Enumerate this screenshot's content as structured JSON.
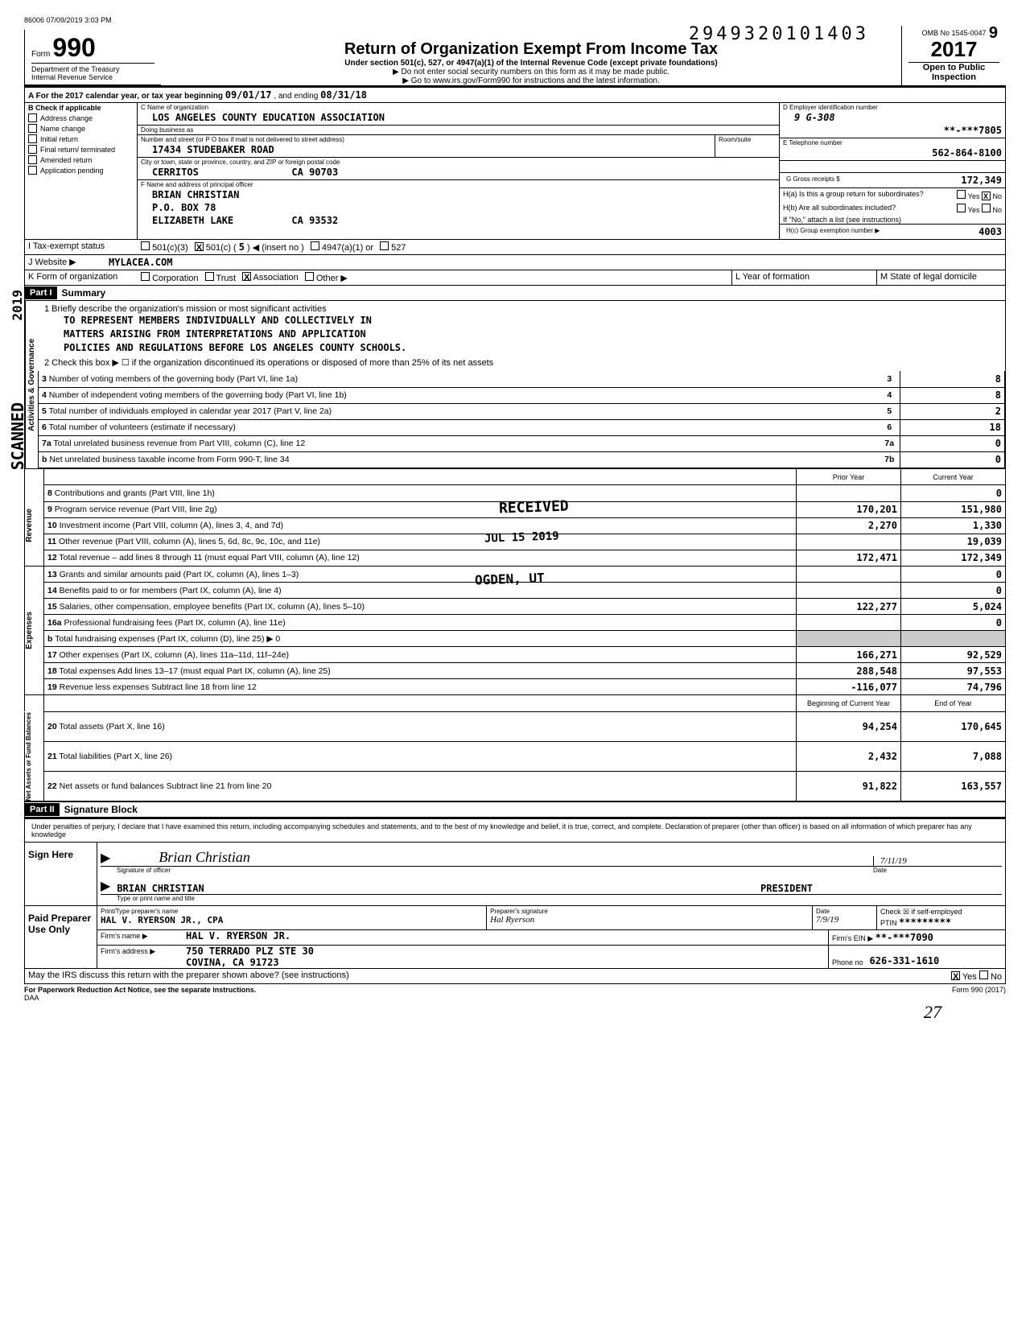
{
  "meta": {
    "print_id": "86006 07/09/2019 3:03 PM",
    "stamp_number": "2949320101403",
    "scan_stamp": "SCANNED",
    "year_stamp": "JUL 15 2019"
  },
  "form": {
    "number": "990",
    "form_label": "Form",
    "dept1": "Department of the Treasury",
    "dept2": "Internal Revenue Service",
    "title": "Return of Organization Exempt From Income Tax",
    "subtitle": "Under section 501(c), 527, or 4947(a)(1) of the Internal Revenue Code (except private foundations)",
    "note1": "▶ Do not enter social security numbers on this form as it may be made public.",
    "note2": "▶ Go to www.irs.gov/Form990 for instructions and the latest information.",
    "omb": "OMB No 1545-0047",
    "year": "2017",
    "open": "Open to Public Inspection"
  },
  "row_a": {
    "prefix": "A   For the 2017 calendar year, or tax year beginning",
    "begin": "09/01/17",
    "mid": ", and ending",
    "end": "08/31/18"
  },
  "section_b": {
    "header": "B   Check if applicable",
    "items": [
      "Address change",
      "Name change",
      "Initial return",
      "Final return/ terminated",
      "Amended return",
      "Application pending"
    ]
  },
  "section_c": {
    "label_name": "C Name of organization",
    "org_name": "LOS ANGELES COUNTY EDUCATION ASSOCIATION",
    "dba_label": "Doing business as",
    "addr_label": "Number and street (or P O box if mail is not delivered to street address)",
    "addr": "17434 STUDEBAKER ROAD",
    "room_label": "Room/suite",
    "city_label": "City or town, state or province, country, and ZIP or foreign postal code",
    "city": "CERRITOS                CA 90703",
    "officer_label": "F  Name and address of principal officer",
    "officer_name": "BRIAN CHRISTIAN",
    "officer_addr1": "P.O. BOX 78",
    "officer_addr2": "ELIZABETH LAKE          CA 93532"
  },
  "section_d": {
    "ein_label": "D Employer identification number",
    "ein_hand": "9 G-308",
    "ein": "**-***7805",
    "phone_label": "E Telephone number",
    "phone": "562-864-8100",
    "gross_label": "G Gross receipts $",
    "gross": "172,349",
    "h_a": "H(a) Is this a group return for subordinates?",
    "h_b": "H(b) Are all subordinates included?",
    "h_note": "If \"No,\" attach a list (see instructions)",
    "h_c": "H(c) Group exemption number ▶",
    "h_c_val": "4003",
    "yes": "Yes",
    "no": "No"
  },
  "tax_status": {
    "label": "I   Tax-exempt status",
    "c3": "501(c)(3)",
    "c": "501(c)",
    "c_num": "5",
    "insert": "◀ (insert no )",
    "a1": "4947(a)(1) or",
    "s527": "527"
  },
  "website": {
    "label": "J   Website ▶",
    "val": "MYLACEA.COM"
  },
  "form_org": {
    "label": "K   Form of organization",
    "opts": [
      "Corporation",
      "Trust",
      "Association",
      "Other ▶"
    ],
    "checked": "Association",
    "L": "L   Year of formation",
    "M": "M   State of legal domicile"
  },
  "part1": {
    "header": "Part I",
    "title": "Summary",
    "line1_label": "1   Briefly describe the organization's mission or most significant activities",
    "mission": [
      "TO REPRESENT MEMBERS INDIVIDUALLY AND COLLECTIVELY IN",
      "MATTERS ARISING FROM INTERPRETATIONS AND APPLICATION",
      "POLICIES AND REGULATIONS BEFORE LOS ANGELES COUNTY SCHOOLS."
    ],
    "line2": "2  Check this box ▶ ☐ if the organization discontinued its operations or disposed of more than 25% of its net assets",
    "received": "RECEIVED",
    "ogden": "OGDEN, UT",
    "col_prior": "Prior Year",
    "col_current": "Current Year",
    "col_begin": "Beginning of Current Year",
    "col_end": "End of Year",
    "side_activities": "Activities & Governance",
    "side_revenue": "Revenue",
    "side_expenses": "Expenses",
    "side_net": "Net Assets or Fund Balances",
    "rows_top": [
      {
        "n": "3",
        "desc": "Number of voting members of the governing body (Part VI, line 1a)",
        "box": "3",
        "val": "8"
      },
      {
        "n": "4",
        "desc": "Number of independent voting members of the governing body (Part VI, line 1b)",
        "box": "4",
        "val": "8"
      },
      {
        "n": "5",
        "desc": "Total number of individuals employed in calendar year 2017 (Part V, line 2a)",
        "box": "5",
        "val": "2"
      },
      {
        "n": "6",
        "desc": "Total number of volunteers (estimate if necessary)",
        "box": "6",
        "val": "18"
      },
      {
        "n": "7a",
        "desc": "Total unrelated business revenue from Part VIII, column (C), line 12",
        "box": "7a",
        "val": "0"
      },
      {
        "n": "b",
        "desc": "Net unrelated business taxable income from Form 990-T, line 34",
        "box": "7b",
        "val": "0"
      }
    ],
    "rows_rev": [
      {
        "n": "8",
        "desc": "Contributions and grants (Part VIII, line 1h)",
        "p": "",
        "c": "0"
      },
      {
        "n": "9",
        "desc": "Program service revenue (Part VIII, line 2g)",
        "p": "170,201",
        "c": "151,980"
      },
      {
        "n": "10",
        "desc": "Investment income (Part VIII, column (A), lines 3, 4, and 7d)",
        "p": "2,270",
        "c": "1,330"
      },
      {
        "n": "11",
        "desc": "Other revenue (Part VIII, column (A), lines 5, 6d, 8c, 9c, 10c, and 11e)",
        "p": "",
        "c": "19,039"
      },
      {
        "n": "12",
        "desc": "Total revenue – add lines 8 through 11 (must equal Part VIII, column (A), line 12)",
        "p": "172,471",
        "c": "172,349"
      }
    ],
    "rows_exp": [
      {
        "n": "13",
        "desc": "Grants and similar amounts paid (Part IX, column (A), lines 1–3)",
        "p": "",
        "c": "0"
      },
      {
        "n": "14",
        "desc": "Benefits paid to or for members (Part IX, column (A), line 4)",
        "p": "",
        "c": "0"
      },
      {
        "n": "15",
        "desc": "Salaries, other compensation, employee benefits (Part IX, column (A), lines 5–10)",
        "p": "122,277",
        "c": "5,024"
      },
      {
        "n": "16a",
        "desc": "Professional fundraising fees (Part IX, column (A), line 11e)",
        "p": "",
        "c": "0"
      },
      {
        "n": "b",
        "desc": "Total fundraising expenses (Part IX, column (D), line 25) ▶                                   0",
        "p": "grey",
        "c": "grey"
      },
      {
        "n": "17",
        "desc": "Other expenses (Part IX, column (A), lines 11a–11d, 11f–24e)",
        "p": "166,271",
        "c": "92,529"
      },
      {
        "n": "18",
        "desc": "Total expenses  Add lines 13–17 (must equal Part IX, column (A), line 25)",
        "p": "288,548",
        "c": "97,553"
      },
      {
        "n": "19",
        "desc": "Revenue less expenses  Subtract line 18 from line 12",
        "p": "-116,077",
        "c": "74,796"
      }
    ],
    "rows_net": [
      {
        "n": "20",
        "desc": "Total assets (Part X, line 16)",
        "p": "94,254",
        "c": "170,645"
      },
      {
        "n": "21",
        "desc": "Total liabilities (Part X, line 26)",
        "p": "2,432",
        "c": "7,088"
      },
      {
        "n": "22",
        "desc": "Net assets or fund balances  Subtract line 21 from line 20",
        "p": "91,822",
        "c": "163,557"
      }
    ]
  },
  "part2": {
    "header": "Part II",
    "title": "Signature Block",
    "perjury": "Under penalties of perjury, I declare that I have examined this return, including accompanying schedules and statements, and to the best of my knowledge and belief, it is true, correct, and complete. Declaration of preparer (other than officer) is based on all information of which preparer has any knowledge",
    "sign": "Sign Here",
    "sig_of": "Signature of officer",
    "date": "Date",
    "date_val": "7/11/19",
    "name": "BRIAN CHRISTIAN",
    "title_val": "PRESIDENT",
    "type_name": "Type or print name and title",
    "paid": "Paid Preparer Use Only",
    "prep_name_label": "Print/Type preparer's name",
    "prep_name": "HAL V. RYERSON JR., CPA",
    "prep_sig_label": "Preparer's signature",
    "prep_date": "7/9/19",
    "check_self": "Check ☒ if self-employed",
    "ptin_label": "PTIN",
    "ptin": "*********",
    "firm_name_label": "Firm's name    ▶",
    "firm_name": "HAL V. RYERSON JR.",
    "firm_ein_label": "Firm's EIN ▶",
    "firm_ein": "**-***7090",
    "firm_addr_label": "Firm's address  ▶",
    "firm_addr1": "750 TERRADO PLZ STE 30",
    "firm_addr2": "COVINA, CA  91723",
    "phone_label": "Phone no",
    "phone": "626-331-1610",
    "discuss": "May the IRS discuss this return with the preparer shown above? (see instructions)",
    "discuss_yes": "Yes",
    "discuss_no": "No"
  },
  "footer": {
    "left": "For Paperwork Reduction Act Notice, see the separate instructions.",
    "daa": "DAA",
    "right": "Form 990 (2017)",
    "page_hand": "27"
  }
}
